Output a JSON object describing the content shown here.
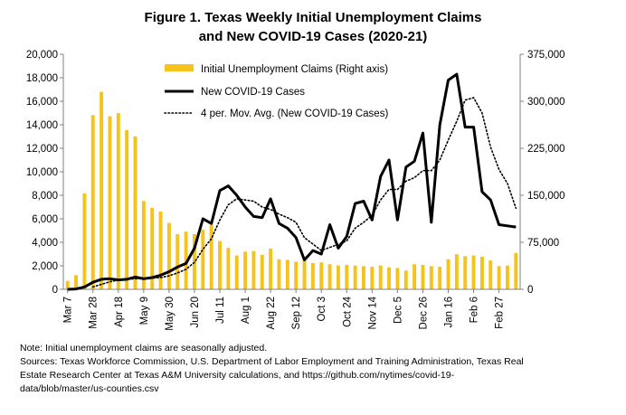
{
  "title_line1": "Figure 1. Texas Weekly Initial Unemployment Claims",
  "title_line2": "and New COVID-19 Cases (2020-21)",
  "note": "Note: Initial unemployment claims are seasonally adjusted.",
  "sources_line1": "Sources: Texas Workforce Commission, U.S. Department of Labor Employment and Training Administration, Texas Real",
  "sources_line2": "Estate Research Center at Texas A&M University calculations, and https://github.com/nytimes/covid-19-",
  "sources_line3": "data/blob/master/us-counties.csv",
  "colors": {
    "bars": "#f5c31c",
    "line": "#000000",
    "axis": "#808080"
  },
  "chart_data": {
    "type": "bar",
    "title": "Figure 1. Texas Weekly Initial Unemployment Claims and New COVID-19 Cases (2020-21)",
    "xlabel": "",
    "ylabel_left": "",
    "ylabel_right": "",
    "ylim_left": [
      0,
      20000
    ],
    "yticks_left": [
      "0",
      "2,000",
      "4,000",
      "6,000",
      "8,000",
      "10,000",
      "12,000",
      "14,000",
      "16,000",
      "18,000",
      "20,000"
    ],
    "ylim_right": [
      0,
      375000
    ],
    "yticks_right": [
      "0",
      "75,000",
      "150,000",
      "225,000",
      "300,000",
      "375,000"
    ],
    "x_tick_labels": [
      "Mar 7",
      "Mar 28",
      "Apr 18",
      "May 9",
      "May 30",
      "Jun 20",
      "Jul 11",
      "Aug 1",
      "Aug 22",
      "Sep 12",
      "Oct 3",
      "Oct 24",
      "Nov 14",
      "Dec 5",
      "Dec 26",
      "Jan 16",
      "Feb 6",
      "Feb 27"
    ],
    "x_tick_every": 3,
    "legend_position": "top-left",
    "series": [
      {
        "name": "Initial Unemployment Claims (Right axis)",
        "type": "bar",
        "axis": "right",
        "values": [
          13500,
          22500,
          153000,
          278000,
          315000,
          276000,
          281000,
          254000,
          244000,
          141000,
          130000,
          124000,
          106000,
          88000,
          92000,
          88000,
          95000,
          103000,
          77000,
          66000,
          54000,
          60000,
          61000,
          55000,
          65000,
          48000,
          47000,
          44000,
          46000,
          42000,
          43000,
          40000,
          38000,
          39000,
          38000,
          37000,
          36000,
          38000,
          35000,
          34000,
          30000,
          40000,
          39000,
          37000,
          36000,
          48000,
          56000,
          53000,
          54000,
          52000,
          46000,
          37000,
          38000,
          58000
        ]
      },
      {
        "name": "New COVID-19 Cases",
        "type": "line",
        "axis": "left",
        "values": [
          0,
          30,
          200,
          600,
          850,
          900,
          800,
          850,
          1050,
          900,
          1000,
          1200,
          1500,
          1900,
          2200,
          3500,
          6000,
          5600,
          8400,
          8800,
          8000,
          7000,
          6200,
          6100,
          7700,
          5600,
          5200,
          4400,
          2500,
          3300,
          3000,
          5500,
          3500,
          4500,
          7300,
          7500,
          5900,
          9600,
          11000,
          5900,
          10400,
          10900,
          13300,
          5700,
          14000,
          17800,
          18300,
          13800,
          13800,
          8300,
          7600,
          5500,
          5400,
          5300
        ]
      },
      {
        "name": "4 per. Mov. Avg. (New COVID-19 Cases)",
        "type": "line",
        "style": "dotted",
        "axis": "left",
        "values": [
          null,
          null,
          null,
          200,
          420,
          640,
          790,
          850,
          900,
          900,
          950,
          1000,
          1150,
          1400,
          1700,
          2300,
          3400,
          4300,
          5900,
          7200,
          7700,
          7600,
          7500,
          7000,
          6800,
          6400,
          6100,
          5700,
          4400,
          3850,
          3300,
          3570,
          3820,
          4120,
          5200,
          5700,
          6300,
          7600,
          8500,
          8500,
          9200,
          9500,
          10100,
          10100,
          11000,
          12700,
          14300,
          16100,
          16300,
          15000,
          12100,
          10200,
          9000,
          6900
        ]
      }
    ]
  }
}
